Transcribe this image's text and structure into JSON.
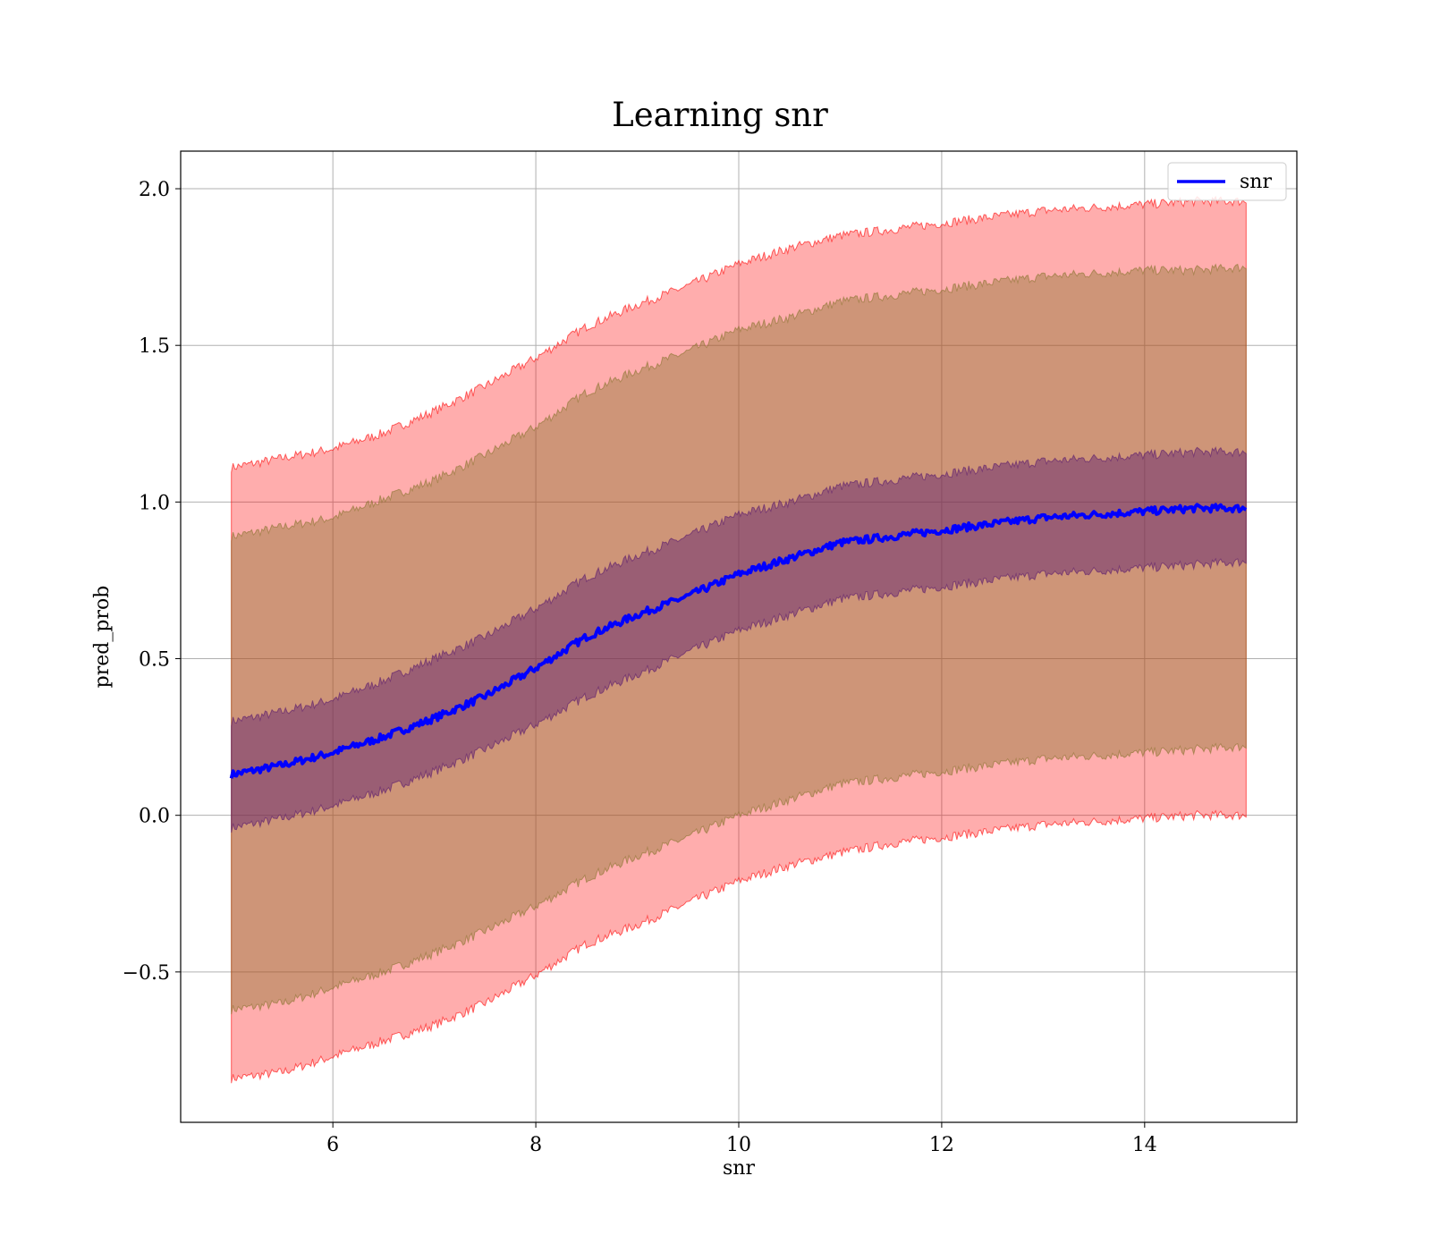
{
  "chart_data": {
    "type": "line",
    "title": "Learning snr",
    "xlabel": "snr",
    "ylabel": "pred_prob",
    "xlim": [
      4.5,
      15.5
    ],
    "ylim": [
      -0.98,
      2.12
    ],
    "x_ticks": [
      6,
      8,
      10,
      12,
      14
    ],
    "x_tick_labels": [
      "6",
      "8",
      "10",
      "12",
      "14"
    ],
    "y_ticks": [
      -0.5,
      0.0,
      0.5,
      1.0,
      1.5,
      2.0
    ],
    "y_tick_labels": [
      "−0.5",
      "0.0",
      "0.5",
      "1.0",
      "1.5",
      "2.0"
    ],
    "grid": true,
    "legend_position": "top-right",
    "x": [
      5.0,
      5.5,
      6.0,
      6.5,
      7.0,
      7.5,
      8.0,
      8.5,
      9.0,
      9.5,
      10.0,
      10.5,
      11.0,
      11.5,
      12.0,
      12.5,
      13.0,
      13.5,
      14.0,
      14.5,
      15.0
    ],
    "series": [
      {
        "name": "snr",
        "color": "#0000ff",
        "values": [
          0.13,
          0.16,
          0.2,
          0.25,
          0.31,
          0.38,
          0.47,
          0.57,
          0.64,
          0.7,
          0.77,
          0.82,
          0.87,
          0.89,
          0.91,
          0.93,
          0.95,
          0.96,
          0.97,
          0.98,
          0.98
        ]
      }
    ],
    "bands": [
      {
        "color": "#ff0000",
        "opacity": 0.32,
        "upper": [
          1.11,
          1.14,
          1.17,
          1.22,
          1.29,
          1.37,
          1.46,
          1.56,
          1.63,
          1.69,
          1.76,
          1.81,
          1.85,
          1.87,
          1.89,
          1.91,
          1.93,
          1.94,
          1.95,
          1.96,
          1.96
        ],
        "lower": [
          -0.84,
          -0.82,
          -0.77,
          -0.72,
          -0.67,
          -0.6,
          -0.51,
          -0.41,
          -0.35,
          -0.28,
          -0.21,
          -0.16,
          -0.12,
          -0.09,
          -0.07,
          -0.05,
          -0.03,
          -0.02,
          -0.01,
          0.0,
          0.0
        ]
      },
      {
        "color": "#8b7530",
        "opacity": 0.42,
        "upper": [
          0.89,
          0.92,
          0.95,
          1.01,
          1.07,
          1.15,
          1.24,
          1.35,
          1.42,
          1.48,
          1.55,
          1.59,
          1.64,
          1.66,
          1.68,
          1.7,
          1.72,
          1.73,
          1.74,
          1.74,
          1.75
        ],
        "lower": [
          -0.62,
          -0.6,
          -0.55,
          -0.5,
          -0.44,
          -0.37,
          -0.29,
          -0.2,
          -0.13,
          -0.07,
          0.0,
          0.05,
          0.1,
          0.12,
          0.14,
          0.16,
          0.18,
          0.19,
          0.2,
          0.21,
          0.22
        ]
      },
      {
        "color": "#5a1a6e",
        "opacity": 0.45,
        "upper": [
          0.3,
          0.33,
          0.37,
          0.43,
          0.5,
          0.57,
          0.66,
          0.76,
          0.83,
          0.89,
          0.96,
          1.0,
          1.05,
          1.07,
          1.09,
          1.11,
          1.13,
          1.14,
          1.15,
          1.16,
          1.16
        ],
        "lower": [
          -0.04,
          -0.01,
          0.03,
          0.08,
          0.14,
          0.21,
          0.29,
          0.38,
          0.45,
          0.52,
          0.59,
          0.64,
          0.69,
          0.71,
          0.73,
          0.75,
          0.77,
          0.78,
          0.79,
          0.8,
          0.81
        ]
      }
    ]
  }
}
